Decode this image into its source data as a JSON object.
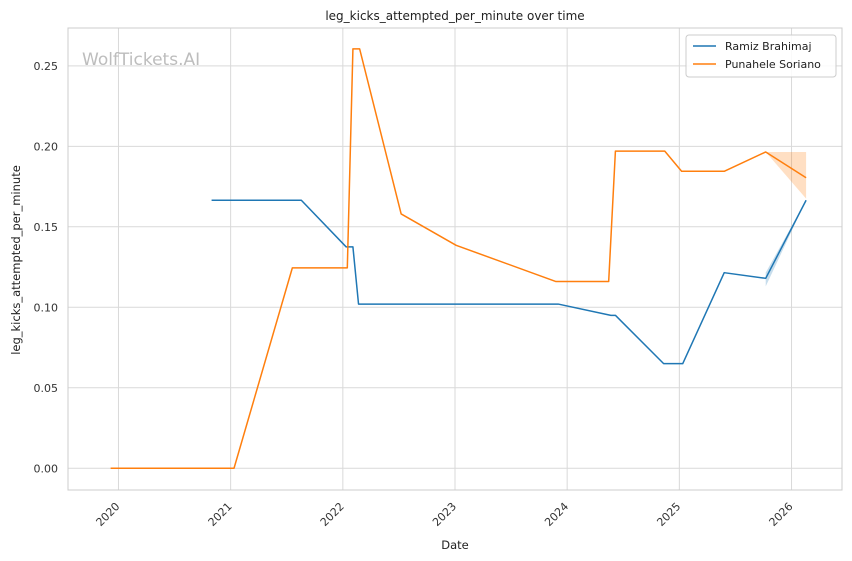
{
  "chart_data": {
    "type": "line",
    "title": "leg_kicks_attempted_per_minute over time",
    "xlabel": "Date",
    "ylabel": "leg_kicks_attempted_per_minute",
    "watermark": "WolfTickets.AI",
    "grid": true,
    "legend_position": "top-right",
    "xlim": [
      2019.55,
      2026.45
    ],
    "ylim": [
      -0.0135,
      0.2735
    ],
    "x_ticks": [
      2020,
      2021,
      2022,
      2023,
      2024,
      2025,
      2026
    ],
    "x_tick_labels": [
      "2020",
      "2021",
      "2022",
      "2023",
      "2024",
      "2025",
      "2026"
    ],
    "y_ticks": [
      0.0,
      0.05,
      0.1,
      0.15,
      0.2,
      0.25
    ],
    "y_tick_labels": [
      "0.00",
      "0.05",
      "0.10",
      "0.15",
      "0.20",
      "0.25"
    ],
    "series": [
      {
        "name": "Ramiz Brahimaj",
        "color": "#1f77b4",
        "x": [
          2020.83,
          2021.63,
          2022.03,
          2022.09,
          2022.14,
          2023.92,
          2024.39,
          2024.43,
          2024.86,
          2025.03,
          2025.4,
          2025.77,
          2026.13
        ],
        "y": [
          0.1665,
          0.1665,
          0.1375,
          0.1375,
          0.102,
          0.102,
          0.095,
          0.095,
          0.065,
          0.065,
          0.1215,
          0.118,
          0.1665
        ],
        "band": {
          "x": [
            2025.77,
            2026.13
          ],
          "upper": [
            0.1215,
            0.1665
          ],
          "lower": [
            0.113,
            0.1665
          ]
        }
      },
      {
        "name": "Punahele Soriano",
        "color": "#ff7f0e",
        "x": [
          2019.93,
          2021.03,
          2021.55,
          2022.04,
          2022.09,
          2022.15,
          2022.52,
          2023.01,
          2023.9,
          2024.37,
          2024.43,
          2024.87,
          2025.02,
          2025.4,
          2025.77,
          2026.13
        ],
        "y": [
          0.0,
          0.0,
          0.1245,
          0.1245,
          0.2605,
          0.2605,
          0.158,
          0.1385,
          0.116,
          0.116,
          0.197,
          0.197,
          0.1845,
          0.1845,
          0.1965,
          0.1805
        ],
        "band": {
          "x": [
            2025.77,
            2026.13
          ],
          "upper": [
            0.1965,
            0.1965
          ],
          "lower": [
            0.1965,
            0.1675
          ]
        }
      }
    ]
  }
}
